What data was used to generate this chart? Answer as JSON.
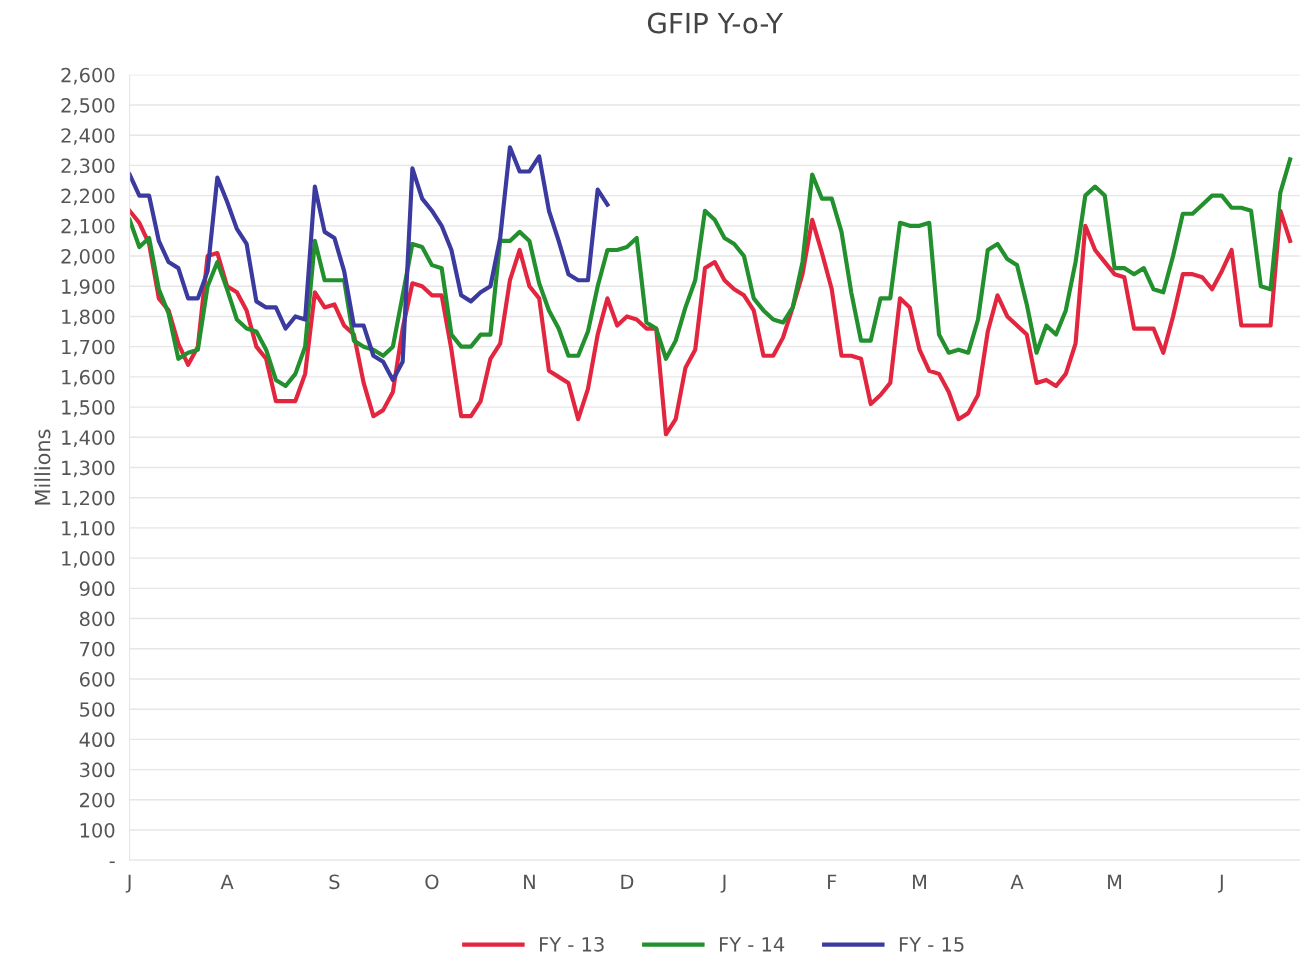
{
  "chart_data": {
    "type": "line",
    "title": "GFIP Y-o-Y",
    "ylabel": "Millions",
    "categories": [
      "J",
      null,
      null,
      null,
      null,
      null,
      null,
      null,
      null,
      null,
      "A",
      null,
      null,
      null,
      null,
      null,
      null,
      null,
      null,
      null,
      null,
      "S",
      null,
      null,
      null,
      null,
      null,
      null,
      null,
      null,
      null,
      "O",
      null,
      null,
      null,
      null,
      null,
      null,
      null,
      null,
      null,
      "N",
      null,
      null,
      null,
      null,
      null,
      null,
      null,
      null,
      null,
      "D",
      null,
      null,
      null,
      null,
      null,
      null,
      null,
      null,
      null,
      "J",
      null,
      null,
      null,
      null,
      null,
      null,
      null,
      null,
      null,
      null,
      "F",
      null,
      null,
      null,
      null,
      null,
      null,
      null,
      null,
      "M",
      null,
      null,
      null,
      null,
      null,
      null,
      null,
      null,
      null,
      "A",
      null,
      null,
      null,
      null,
      null,
      null,
      null,
      null,
      null,
      "M",
      null,
      null,
      null,
      null,
      null,
      null,
      null,
      null,
      null,
      null,
      "J",
      null,
      null,
      null,
      null,
      null,
      null,
      null
    ],
    "ylim": [
      0,
      2600
    ],
    "yticks": [
      {
        "value": 0,
        "label": "-"
      },
      100,
      200,
      300,
      400,
      500,
      600,
      700,
      800,
      900,
      {
        "value": 1000,
        "label": "1,000"
      },
      {
        "value": 1100,
        "label": "1,100"
      },
      {
        "value": 1200,
        "label": "1,200"
      },
      {
        "value": 1300,
        "label": "1,300"
      },
      {
        "value": 1400,
        "label": "1,400"
      },
      {
        "value": 1500,
        "label": "1,500"
      },
      {
        "value": 1600,
        "label": "1,600"
      },
      {
        "value": 1700,
        "label": "1,700"
      },
      {
        "value": 1800,
        "label": "1,800"
      },
      {
        "value": 1900,
        "label": "1,900"
      },
      {
        "value": 2000,
        "label": "2,000"
      },
      {
        "value": 2100,
        "label": "2,100"
      },
      {
        "value": 2200,
        "label": "2,200"
      },
      {
        "value": 2300,
        "label": "2,300"
      },
      {
        "value": 2400,
        "label": "2,400"
      },
      {
        "value": 2500,
        "label": "2,500"
      },
      {
        "value": 2600,
        "label": "2,600"
      }
    ],
    "grid": "y",
    "legend": "bottom",
    "marker": "none",
    "line_style": "solid",
    "series": [
      {
        "name": "FY - 13",
        "color": "#e3263f",
        "values": [
          2150,
          2110,
          2040,
          1860,
          1820,
          1710,
          1640,
          1700,
          2000,
          2010,
          1900,
          1880,
          1820,
          1700,
          1660,
          1520,
          1520,
          1520,
          1610,
          1880,
          1830,
          1840,
          1770,
          1740,
          1580,
          1470,
          1490,
          1550,
          1760,
          1910,
          1900,
          1870,
          1870,
          1690,
          1470,
          1470,
          1520,
          1660,
          1710,
          1920,
          2020,
          1900,
          1860,
          1620,
          1600,
          1580,
          1460,
          1560,
          1740,
          1860,
          1770,
          1800,
          1790,
          1760,
          1760,
          1410,
          1460,
          1630,
          1690,
          1960,
          1980,
          1920,
          1890,
          1870,
          1820,
          1670,
          1670,
          1730,
          1830,
          1940,
          2120,
          2010,
          1890,
          1670,
          1670,
          1660,
          1510,
          1540,
          1580,
          1860,
          1830,
          1690,
          1620,
          1610,
          1550,
          1460,
          1480,
          1540,
          1750,
          1870,
          1800,
          1770,
          1740,
          1580,
          1590,
          1570,
          1610,
          1710,
          2100,
          2020,
          1980,
          1940,
          1930,
          1760,
          1760,
          1760,
          1680,
          1800,
          1940,
          1940,
          1930,
          1890,
          1950,
          2020,
          1770,
          1770,
          1770,
          1770,
          2150,
          2050
        ]
      },
      {
        "name": "FY - 14",
        "color": "#23902e",
        "values": [
          2120,
          2030,
          2060,
          1890,
          1810,
          1660,
          1680,
          1690,
          1900,
          1980,
          1890,
          1790,
          1760,
          1750,
          1690,
          1590,
          1570,
          1610,
          1700,
          2050,
          1920,
          1920,
          1920,
          1720,
          1700,
          1690,
          1670,
          1700,
          1870,
          2040,
          2030,
          1970,
          1960,
          1740,
          1700,
          1700,
          1740,
          1740,
          2050,
          2050,
          2080,
          2050,
          1910,
          1820,
          1760,
          1670,
          1670,
          1750,
          1900,
          2020,
          2020,
          2030,
          2060,
          1780,
          1760,
          1660,
          1720,
          1830,
          1920,
          2150,
          2120,
          2060,
          2040,
          2000,
          1860,
          1820,
          1790,
          1780,
          1830,
          1980,
          2270,
          2190,
          2190,
          2080,
          1880,
          1720,
          1720,
          1860,
          1860,
          2110,
          2100,
          2100,
          2110,
          1740,
          1680,
          1690,
          1680,
          1790,
          2020,
          2040,
          1990,
          1970,
          1840,
          1680,
          1770,
          1740,
          1820,
          1980,
          2200,
          2230,
          2200,
          1960,
          1960,
          1940,
          1960,
          1890,
          1880,
          2000,
          2140,
          2140,
          2170,
          2200,
          2200,
          2160,
          2160,
          2150,
          1900,
          1890,
          2210,
          2320
        ]
      },
      {
        "name": "FY - 15",
        "color": "#3b3a9e",
        "values": [
          2270,
          2200,
          2200,
          2050,
          1980,
          1960,
          1860,
          1860,
          1950,
          2260,
          2180,
          2090,
          2040,
          1850,
          1830,
          1830,
          1760,
          1800,
          1790,
          2230,
          2080,
          2060,
          1950,
          1770,
          1770,
          1670,
          1650,
          1590,
          1650,
          2290,
          2190,
          2150,
          2100,
          2020,
          1870,
          1850,
          1880,
          1900,
          2060,
          2360,
          2280,
          2280,
          2330,
          2150,
          2050,
          1940,
          1920,
          1920,
          2220,
          2170,
          null,
          null,
          null,
          null,
          null,
          null,
          null,
          null,
          null,
          null,
          null,
          null,
          null,
          null,
          null,
          null,
          null,
          null,
          null,
          null,
          null,
          null,
          null,
          null,
          null,
          null,
          null,
          null,
          null,
          null,
          null,
          null,
          null,
          null,
          null,
          null,
          null,
          null,
          null,
          null,
          null,
          null,
          null,
          null,
          null,
          null,
          null,
          null,
          null,
          null,
          null,
          null,
          null,
          null,
          null,
          null,
          null,
          null,
          null,
          null,
          null,
          null,
          null,
          null,
          null,
          null,
          null,
          null,
          null,
          null
        ]
      }
    ]
  }
}
